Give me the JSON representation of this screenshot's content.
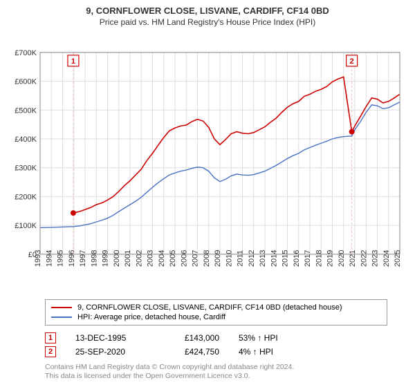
{
  "title": "9, CORNFLOWER CLOSE, LISVANE, CARDIFF, CF14 0BD",
  "subtitle": "Price paid vs. HM Land Registry's House Price Index (HPI)",
  "chart": {
    "type": "line",
    "background_color": "#ffffff",
    "plot_border_color": "#888888",
    "grid_color": "#dddddd",
    "x_axis": {
      "min": 1993,
      "max": 2025,
      "ticks": [
        1993,
        1994,
        1995,
        1996,
        1997,
        1998,
        1999,
        2000,
        2001,
        2002,
        2003,
        2004,
        2005,
        2006,
        2007,
        2008,
        2009,
        2010,
        2011,
        2012,
        2013,
        2014,
        2015,
        2016,
        2017,
        2018,
        2019,
        2020,
        2021,
        2022,
        2023,
        2024,
        2025
      ],
      "label_fontsize": 11,
      "rotation": -90
    },
    "y_axis": {
      "min": 0,
      "max": 700000,
      "ticks": [
        0,
        100000,
        200000,
        300000,
        400000,
        500000,
        600000,
        700000
      ],
      "tick_labels": [
        "£0",
        "£100K",
        "£200K",
        "£300K",
        "£400K",
        "£500K",
        "£600K",
        "£700K"
      ],
      "label_fontsize": 11
    },
    "series": [
      {
        "name": "property",
        "label": "9, CORNFLOWER CLOSE, LISVANE, CARDIFF, CF14 0BD (detached house)",
        "color": "#cc0000",
        "line_width": 1.6,
        "points": [
          [
            1995.95,
            143000
          ],
          [
            1996.5,
            148000
          ],
          [
            1997,
            155000
          ],
          [
            1997.5,
            162000
          ],
          [
            1998,
            172000
          ],
          [
            1998.5,
            178000
          ],
          [
            1999,
            188000
          ],
          [
            1999.5,
            200000
          ],
          [
            2000,
            218000
          ],
          [
            2000.5,
            238000
          ],
          [
            2001,
            255000
          ],
          [
            2001.5,
            275000
          ],
          [
            2002,
            295000
          ],
          [
            2002.5,
            325000
          ],
          [
            2003,
            350000
          ],
          [
            2003.5,
            378000
          ],
          [
            2004,
            405000
          ],
          [
            2004.5,
            428000
          ],
          [
            2005,
            438000
          ],
          [
            2005.5,
            445000
          ],
          [
            2006,
            448000
          ],
          [
            2006.5,
            460000
          ],
          [
            2007,
            468000
          ],
          [
            2007.5,
            462000
          ],
          [
            2008,
            440000
          ],
          [
            2008.5,
            400000
          ],
          [
            2009,
            380000
          ],
          [
            2009.5,
            398000
          ],
          [
            2010,
            418000
          ],
          [
            2010.5,
            425000
          ],
          [
            2011,
            420000
          ],
          [
            2011.5,
            418000
          ],
          [
            2012,
            422000
          ],
          [
            2012.5,
            432000
          ],
          [
            2013,
            442000
          ],
          [
            2013.5,
            458000
          ],
          [
            2014,
            472000
          ],
          [
            2014.5,
            492000
          ],
          [
            2015,
            510000
          ],
          [
            2015.5,
            522000
          ],
          [
            2016,
            530000
          ],
          [
            2016.5,
            548000
          ],
          [
            2017,
            555000
          ],
          [
            2017.5,
            565000
          ],
          [
            2018,
            572000
          ],
          [
            2018.5,
            582000
          ],
          [
            2019,
            598000
          ],
          [
            2019.5,
            608000
          ],
          [
            2020,
            615000
          ],
          [
            2020.73,
            424750
          ],
          [
            2021,
            445000
          ],
          [
            2021.5,
            478000
          ],
          [
            2022,
            512000
          ],
          [
            2022.5,
            542000
          ],
          [
            2023,
            538000
          ],
          [
            2023.5,
            525000
          ],
          [
            2024,
            530000
          ],
          [
            2024.5,
            542000
          ],
          [
            2025,
            555000
          ]
        ]
      },
      {
        "name": "hpi",
        "label": "HPI: Average price, detached house, Cardiff",
        "color": "#4a72c4",
        "line_width": 1.4,
        "points": [
          [
            1993,
            92000
          ],
          [
            1994,
            93000
          ],
          [
            1995,
            94500
          ],
          [
            1995.95,
            96000
          ],
          [
            1996.5,
            98000
          ],
          [
            1997,
            102000
          ],
          [
            1997.5,
            106000
          ],
          [
            1998,
            112000
          ],
          [
            1998.5,
            118000
          ],
          [
            1999,
            125000
          ],
          [
            1999.5,
            135000
          ],
          [
            2000,
            148000
          ],
          [
            2000.5,
            160000
          ],
          [
            2001,
            172000
          ],
          [
            2001.5,
            184000
          ],
          [
            2002,
            198000
          ],
          [
            2002.5,
            215000
          ],
          [
            2003,
            232000
          ],
          [
            2003.5,
            248000
          ],
          [
            2004,
            262000
          ],
          [
            2004.5,
            275000
          ],
          [
            2005,
            282000
          ],
          [
            2005.5,
            288000
          ],
          [
            2006,
            292000
          ],
          [
            2006.5,
            298000
          ],
          [
            2007,
            302000
          ],
          [
            2007.5,
            300000
          ],
          [
            2008,
            288000
          ],
          [
            2008.5,
            265000
          ],
          [
            2009,
            252000
          ],
          [
            2009.5,
            260000
          ],
          [
            2010,
            272000
          ],
          [
            2010.5,
            278000
          ],
          [
            2011,
            275000
          ],
          [
            2011.5,
            274000
          ],
          [
            2012,
            276000
          ],
          [
            2012.5,
            282000
          ],
          [
            2013,
            288000
          ],
          [
            2013.5,
            298000
          ],
          [
            2014,
            308000
          ],
          [
            2014.5,
            320000
          ],
          [
            2015,
            332000
          ],
          [
            2015.5,
            342000
          ],
          [
            2016,
            350000
          ],
          [
            2016.5,
            362000
          ],
          [
            2017,
            370000
          ],
          [
            2017.5,
            378000
          ],
          [
            2018,
            385000
          ],
          [
            2018.5,
            392000
          ],
          [
            2019,
            400000
          ],
          [
            2019.5,
            405000
          ],
          [
            2020,
            408000
          ],
          [
            2020.73,
            410000
          ],
          [
            2021,
            432000
          ],
          [
            2021.5,
            460000
          ],
          [
            2022,
            492000
          ],
          [
            2022.5,
            518000
          ],
          [
            2023,
            515000
          ],
          [
            2023.5,
            505000
          ],
          [
            2024,
            508000
          ],
          [
            2024.5,
            518000
          ],
          [
            2025,
            528000
          ]
        ]
      }
    ],
    "markers": [
      {
        "n": "1",
        "x": 1995.95,
        "y": 143000,
        "color": "#cc0000"
      },
      {
        "n": "2",
        "x": 2020.73,
        "y": 424750,
        "color": "#cc0000"
      }
    ],
    "marker_vline_color": "#eebbbb",
    "marker_badge_bg": "#ffffff"
  },
  "legend": {
    "items": [
      {
        "color": "#cc0000",
        "label": "9, CORNFLOWER CLOSE, LISVANE, CARDIFF, CF14 0BD (detached house)"
      },
      {
        "color": "#4a72c4",
        "label": "HPI: Average price, detached house, Cardiff"
      }
    ]
  },
  "transactions": [
    {
      "n": "1",
      "color": "#cc0000",
      "date": "13-DEC-1995",
      "price": "£143,000",
      "diff": "53% ↑ HPI"
    },
    {
      "n": "2",
      "color": "#cc0000",
      "date": "25-SEP-2020",
      "price": "£424,750",
      "diff": "4% ↑ HPI"
    }
  ],
  "footer_line1": "Contains HM Land Registry data © Crown copyright and database right 2024.",
  "footer_line2": "This data is licensed under the Open Government Licence v3.0."
}
